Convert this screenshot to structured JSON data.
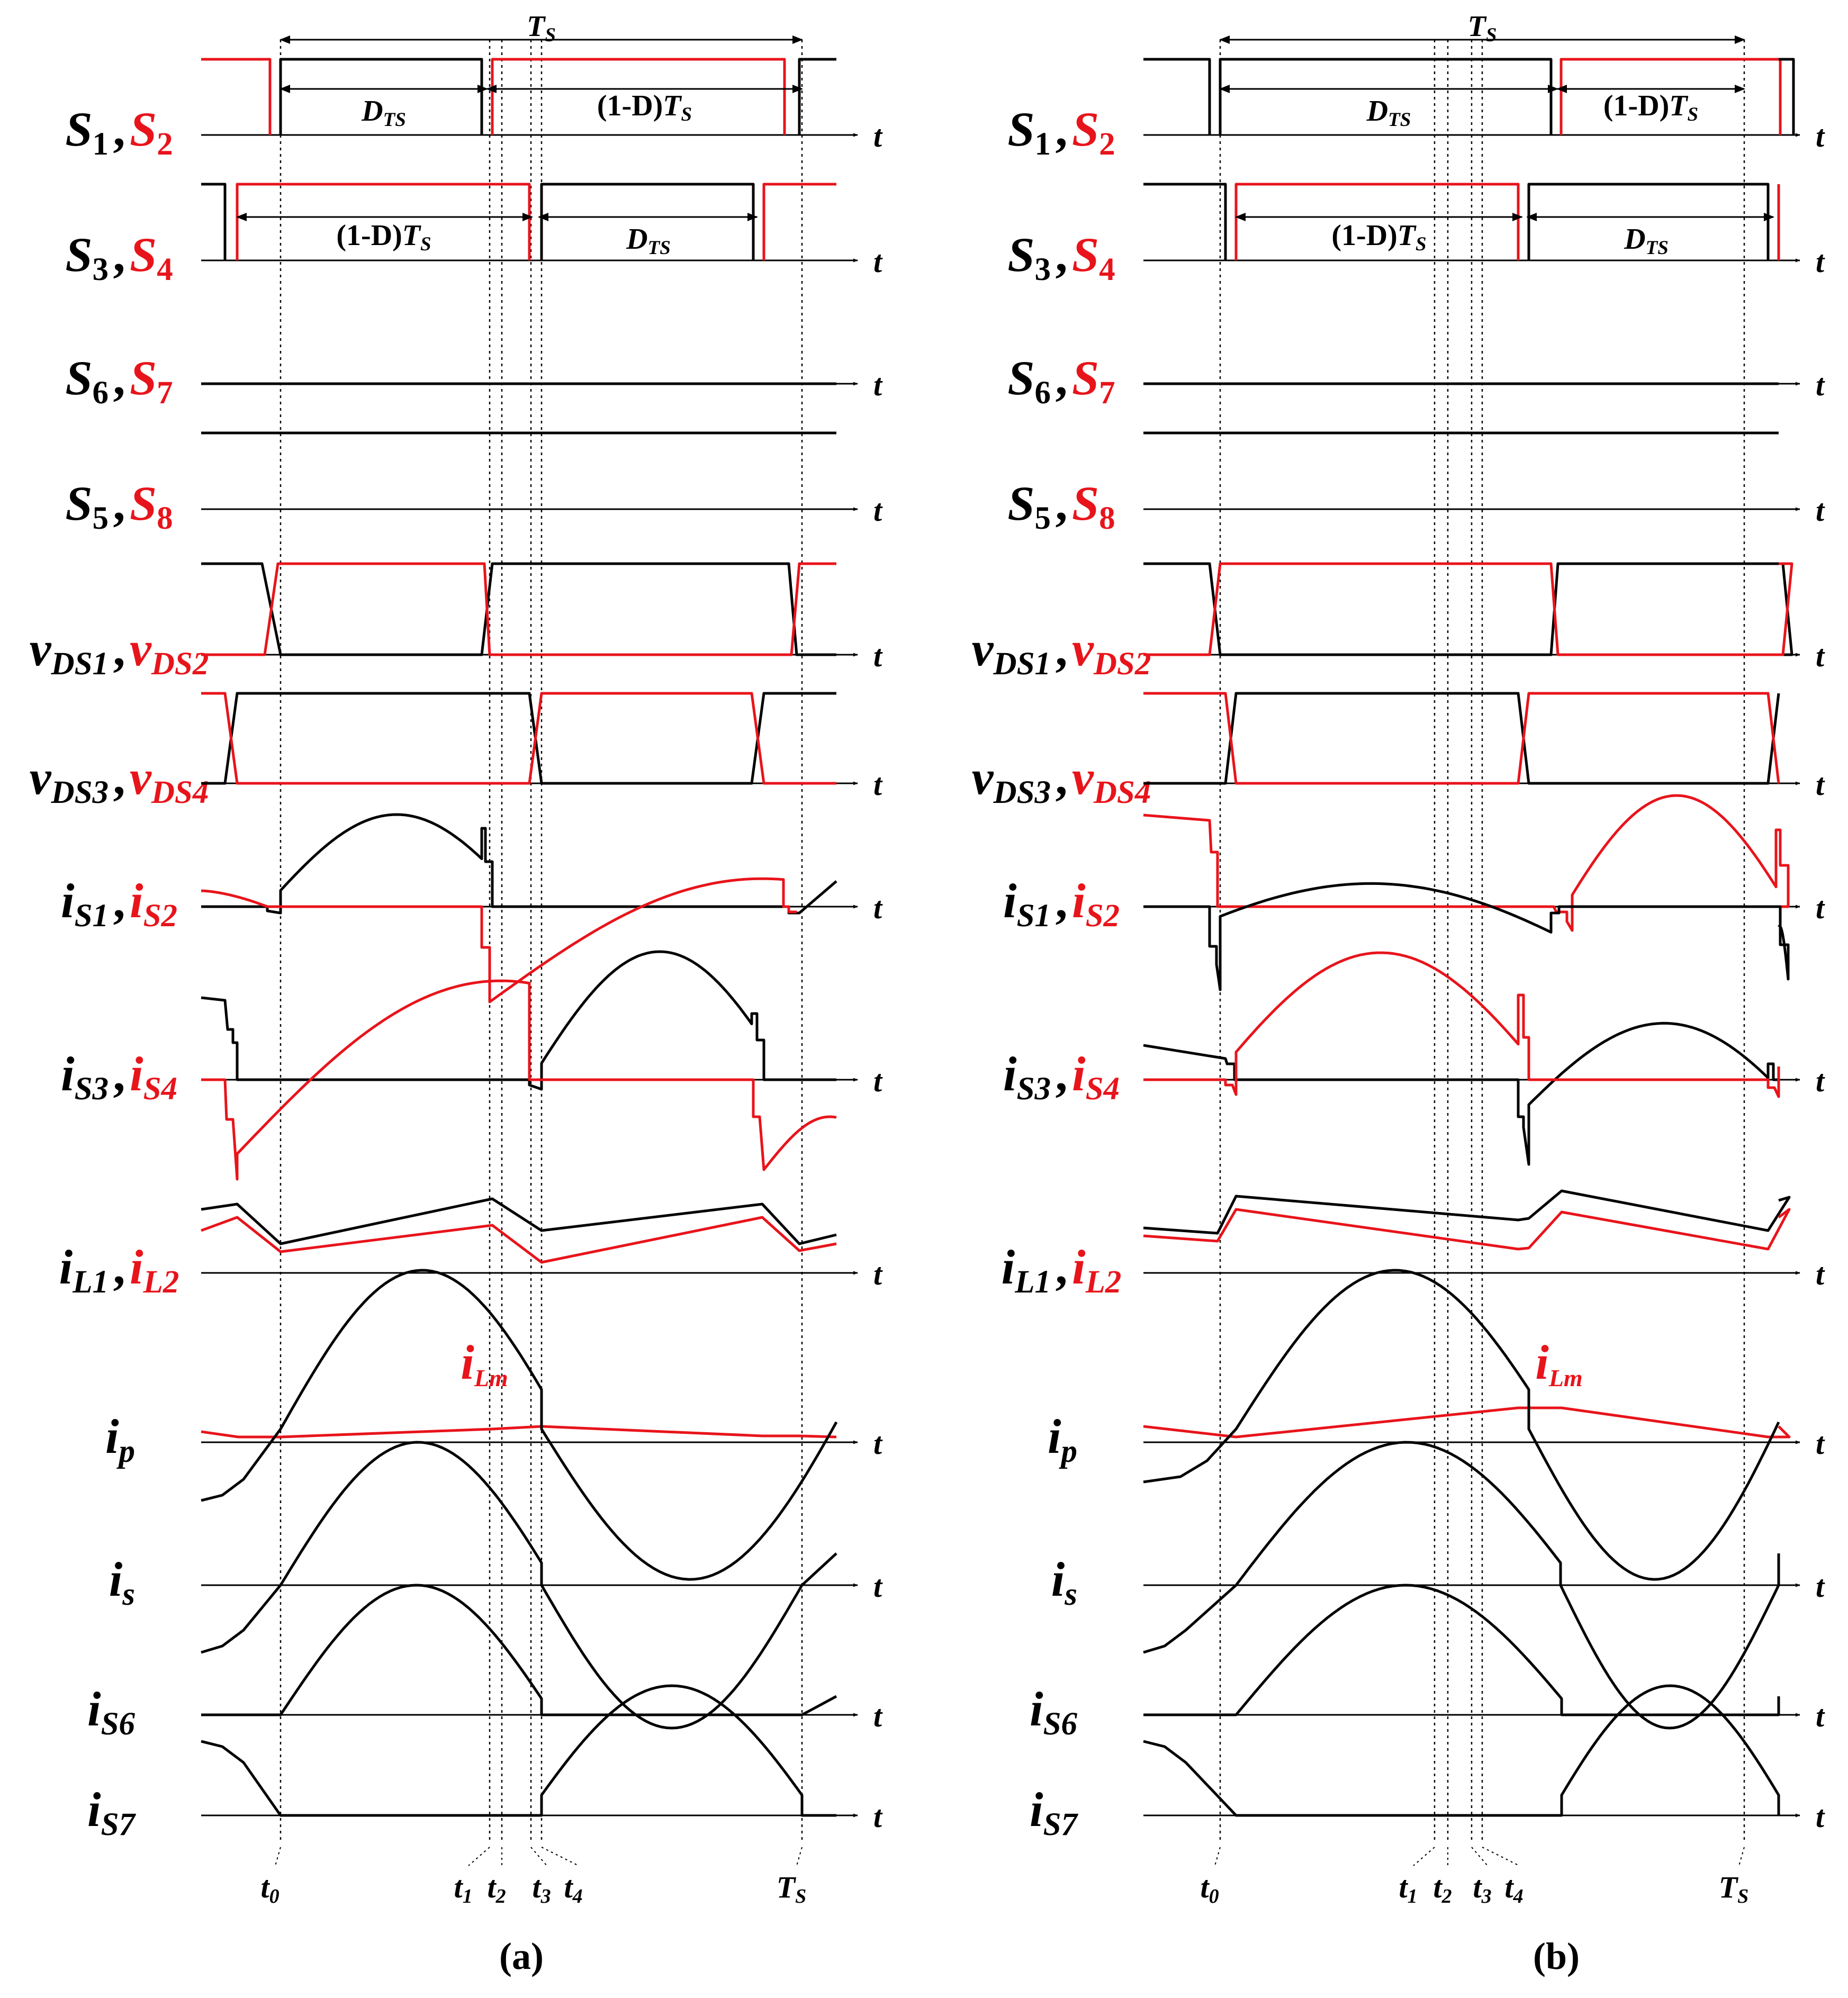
{
  "colors": {
    "primary": "#000000",
    "secondary": "#e8141b",
    "background": "#ffffff"
  },
  "panels": [
    {
      "caption": "(a)",
      "signal_labels": [
        {
          "id": "s1s2",
          "first": "S1",
          "second": "S2"
        },
        {
          "id": "s3s4",
          "first": "S3",
          "second": "S4"
        },
        {
          "id": "s6s7",
          "first": "S6",
          "second": "S7"
        },
        {
          "id": "s5s8",
          "first": "S5",
          "second": "S8"
        },
        {
          "id": "vds12",
          "first": "vDS1",
          "second": "vDS2"
        },
        {
          "id": "vds34",
          "first": "vDS3",
          "second": "vDS4"
        },
        {
          "id": "is12",
          "first": "iS1",
          "second": "iS2"
        },
        {
          "id": "is34",
          "first": "iS3",
          "second": "iS4"
        },
        {
          "id": "il12",
          "first": "iL1",
          "second": "iL2"
        },
        {
          "id": "ip",
          "first": "ip"
        },
        {
          "id": "is",
          "first": "is"
        },
        {
          "id": "is6",
          "first": "iS6"
        },
        {
          "id": "is7",
          "first": "iS7"
        }
      ],
      "axis_label": "t",
      "annotations": {
        "period": "TS",
        "duty_on": "DTS",
        "duty_off": "(1-D)TS",
        "magnetizing": "iLm"
      },
      "time_marks": [
        "t0",
        "t1",
        "t2",
        "t3",
        "t4",
        "TS"
      ]
    },
    {
      "caption": "(b)",
      "signal_labels": [
        {
          "id": "s1s2",
          "first": "S1",
          "second": "S2"
        },
        {
          "id": "s3s4",
          "first": "S3",
          "second": "S4"
        },
        {
          "id": "s6s7",
          "first": "S6",
          "second": "S7"
        },
        {
          "id": "s5s8",
          "first": "S5",
          "second": "S8"
        },
        {
          "id": "vds12",
          "first": "vDS1",
          "second": "vDS2"
        },
        {
          "id": "vds34",
          "first": "vDS3",
          "second": "vDS4"
        },
        {
          "id": "is12",
          "first": "iS1",
          "second": "iS2"
        },
        {
          "id": "is34",
          "first": "iS3",
          "second": "iS4"
        },
        {
          "id": "il12",
          "first": "iL1",
          "second": "iL2"
        },
        {
          "id": "ip",
          "first": "ip"
        },
        {
          "id": "is",
          "first": "is"
        },
        {
          "id": "is6",
          "first": "iS6"
        },
        {
          "id": "is7",
          "first": "iS7"
        }
      ],
      "axis_label": "t",
      "annotations": {
        "period": "TS",
        "duty_on": "DTS",
        "duty_off": "(1-D)TS",
        "magnetizing": "iLm"
      },
      "time_marks": [
        "t0",
        "t1",
        "t2",
        "t3",
        "t4",
        "TS"
      ]
    }
  ]
}
